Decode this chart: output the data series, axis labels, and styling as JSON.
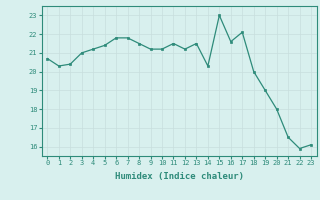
{
  "x": [
    0,
    1,
    2,
    3,
    4,
    5,
    6,
    7,
    8,
    9,
    10,
    11,
    12,
    13,
    14,
    15,
    16,
    17,
    18,
    19,
    20,
    21,
    22,
    23
  ],
  "y": [
    20.7,
    20.3,
    20.4,
    21.0,
    21.2,
    21.4,
    21.8,
    21.8,
    21.5,
    21.2,
    21.2,
    21.5,
    21.2,
    21.5,
    20.3,
    23.0,
    21.6,
    22.1,
    20.0,
    19.0,
    18.0,
    16.5,
    15.9,
    16.1
  ],
  "xlabel": "Humidex (Indice chaleur)",
  "ylim": [
    15.5,
    23.5
  ],
  "yticks": [
    16,
    17,
    18,
    19,
    20,
    21,
    22,
    23
  ],
  "xticks": [
    0,
    1,
    2,
    3,
    4,
    5,
    6,
    7,
    8,
    9,
    10,
    11,
    12,
    13,
    14,
    15,
    16,
    17,
    18,
    19,
    20,
    21,
    22,
    23
  ],
  "line_color": "#2e8b7a",
  "marker_color": "#2e8b7a",
  "bg_color": "#d8f0ee",
  "grid_color": "#c8dedd",
  "axis_color": "#2e8b7a",
  "tick_color": "#2e8b7a",
  "label_color": "#2e8b7a",
  "xlabel_fontsize": 6.5,
  "tick_fontsize": 5.0
}
